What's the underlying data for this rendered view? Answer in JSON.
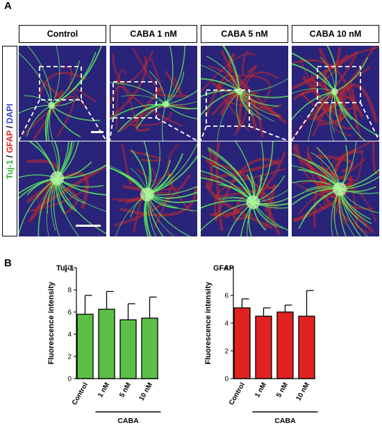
{
  "panel_a": {
    "letter": "A",
    "column_headers": [
      "Control",
      "CABA 1 nM",
      "CABA 5 nM",
      "CABA 10 nM"
    ],
    "row_label_parts": [
      {
        "text": "Tuj-1",
        "color": "#2db52d"
      },
      {
        "text": " / ",
        "color": "#000000"
      },
      {
        "text": "GFAP",
        "color": "#e0201b"
      },
      {
        "text": " / ",
        "color": "#000000"
      },
      {
        "text": "DAPI",
        "color": "#2f3bd0"
      }
    ],
    "stain_colors": {
      "tuj1": "#5cf25c",
      "gfap": "#c42a2a",
      "dapi": "#2a237a"
    }
  },
  "panel_b": {
    "letter": "B",
    "group_label": "CABA"
  },
  "chart_data": [
    {
      "type": "bar",
      "title": "Tuj-1",
      "xlabel": "",
      "ylabel": "Fluorescence intensity",
      "categories": [
        "Control",
        "1 nM",
        "5 nM",
        "10 nM"
      ],
      "values": [
        5.8,
        6.25,
        5.3,
        5.45
      ],
      "errors": [
        1.7,
        1.6,
        1.45,
        1.9
      ],
      "ylim": [
        0,
        10
      ],
      "yticks": [
        0,
        2,
        4,
        6,
        8,
        10
      ],
      "bar_color": "#5bbf48",
      "group_label": "CABA"
    },
    {
      "type": "bar",
      "title": "GFAP",
      "xlabel": "",
      "ylabel": "Fluorescence intensity",
      "categories": [
        "Control",
        "1 nM",
        "5 nM",
        "10 nM"
      ],
      "values": [
        5.1,
        4.5,
        4.8,
        4.5
      ],
      "errors": [
        0.65,
        0.6,
        0.5,
        1.85
      ],
      "ylim": [
        0,
        8
      ],
      "yticks": [
        0,
        2,
        4,
        6,
        8
      ],
      "bar_color": "#e02220",
      "group_label": "CABA"
    }
  ]
}
